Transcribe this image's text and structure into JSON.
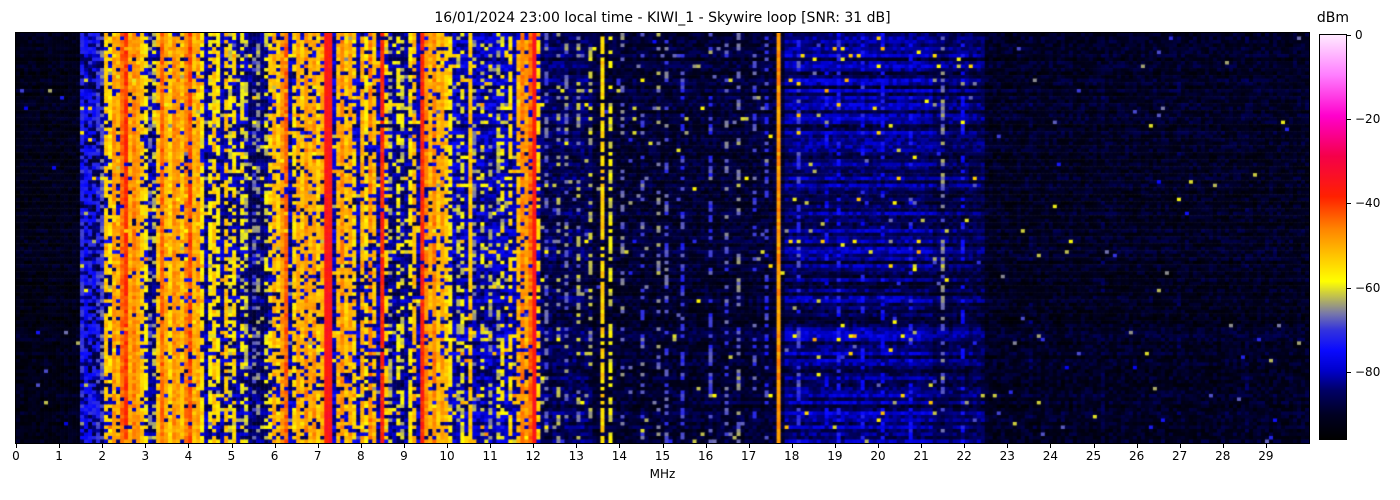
{
  "chart_data": {
    "type": "heatmap",
    "title": "16/01/2024 23:00 local time - KIWI_1 - Skywire loop [SNR: 31 dB]",
    "xlabel": "MHz",
    "ylabel": "",
    "x_range": [
      0,
      30
    ],
    "x_ticks": [
      0,
      1,
      2,
      3,
      4,
      5,
      6,
      7,
      8,
      9,
      10,
      11,
      12,
      13,
      14,
      15,
      16,
      17,
      18,
      19,
      20,
      21,
      22,
      23,
      24,
      25,
      26,
      27,
      28,
      29
    ],
    "y_ticks": [],
    "snr_db": 31,
    "station": "KIWI_1",
    "antenna": "Skywire loop",
    "timestamp": "16/01/2024 23:00 local time",
    "colorbar": {
      "label": "dBm",
      "range": [
        -96,
        0
      ],
      "ticks": [
        {
          "v": 0,
          "label": "0"
        },
        {
          "v": -20,
          "label": "−20"
        },
        {
          "v": -40,
          "label": "−40"
        },
        {
          "v": -60,
          "label": "−60"
        },
        {
          "v": -80,
          "label": "−80"
        }
      ]
    },
    "colormap_stops": [
      [
        0.0,
        "#000000"
      ],
      [
        0.06,
        "#000022"
      ],
      [
        0.12,
        "#000066"
      ],
      [
        0.17,
        "#0000cc"
      ],
      [
        0.22,
        "#0a0aff"
      ],
      [
        0.27,
        "#3333dd"
      ],
      [
        0.31,
        "#7777aa"
      ],
      [
        0.35,
        "#bbbb55"
      ],
      [
        0.39,
        "#ffff00"
      ],
      [
        0.45,
        "#ffc800"
      ],
      [
        0.52,
        "#ff8400"
      ],
      [
        0.6,
        "#ff2000"
      ],
      [
        0.7,
        "#f50049"
      ],
      [
        0.8,
        "#ff00cc"
      ],
      [
        0.9,
        "#ff7dff"
      ],
      [
        1.0,
        "#ffeaff"
      ]
    ],
    "grid": {
      "cols": 323,
      "rows": 117,
      "seed": 20240116
    },
    "noise_bands": [
      [
        0.0,
        1.45,
        -92,
        3,
        1.5,
        0.004
      ],
      [
        1.45,
        2.05,
        -85,
        4,
        2,
        0.012
      ],
      [
        2.05,
        3.02,
        -81,
        5,
        3,
        0.05
      ],
      [
        3.02,
        3.3,
        -83,
        4.5,
        2.5,
        0.03
      ],
      [
        3.3,
        4.4,
        -80,
        5,
        3,
        0.07
      ],
      [
        4.4,
        5.4,
        -82,
        4.5,
        3,
        0.04
      ],
      [
        5.4,
        5.85,
        -84.5,
        4,
        2.5,
        0.02
      ],
      [
        5.85,
        8.62,
        -81,
        5,
        3,
        0.05
      ],
      [
        8.62,
        9.3,
        -83,
        4.5,
        2.5,
        0.03
      ],
      [
        9.3,
        10.12,
        -80.5,
        5,
        3,
        0.06
      ],
      [
        10.12,
        11.56,
        -81,
        5,
        3.5,
        0.05
      ],
      [
        11.56,
        12.2,
        -81,
        5,
        3,
        0.05
      ],
      [
        12.2,
        13.4,
        -86,
        4,
        2.5,
        0.018
      ],
      [
        13.4,
        17.8,
        -89,
        3.5,
        2,
        0.01
      ],
      [
        17.8,
        21.3,
        -84,
        3.5,
        5.5,
        0.012
      ],
      [
        21.3,
        22.45,
        -86,
        3.5,
        4,
        0.008
      ],
      [
        22.45,
        30.0,
        -90.5,
        3.5,
        1.5,
        0.004
      ]
    ],
    "carriers": [
      [
        1.5,
        -72,
        0.8
      ],
      [
        1.58,
        -75,
        0.6
      ],
      [
        1.68,
        -73,
        0.6
      ],
      [
        1.8,
        -74,
        0.5
      ],
      [
        1.9,
        -71,
        0.6
      ],
      [
        1.98,
        -68,
        0.6
      ],
      [
        2.06,
        -53,
        0.8
      ],
      [
        2.16,
        -56,
        0.6
      ],
      [
        2.23,
        -48,
        0.85
      ],
      [
        2.31,
        -55,
        0.6
      ],
      [
        2.38,
        -51,
        0.7
      ],
      [
        2.45,
        -44,
        0.9
      ],
      [
        2.52,
        -52,
        0.7
      ],
      [
        2.58,
        -40,
        0.95
      ],
      [
        2.65,
        -50,
        0.9
      ],
      [
        2.72,
        -46,
        0.95
      ],
      [
        2.79,
        -52,
        0.85
      ],
      [
        2.86,
        -49,
        0.9
      ],
      [
        2.93,
        -53,
        0.8
      ],
      [
        2.99,
        -57,
        0.6
      ],
      [
        3.12,
        -66,
        0.3
      ],
      [
        3.22,
        -62,
        0.4
      ],
      [
        3.34,
        -52,
        0.85
      ],
      [
        3.41,
        -44,
        0.95
      ],
      [
        3.49,
        -50,
        0.85
      ],
      [
        3.56,
        -54,
        0.8
      ],
      [
        3.64,
        -47,
        0.9
      ],
      [
        3.71,
        -52,
        0.85
      ],
      [
        3.79,
        -49,
        0.9
      ],
      [
        3.86,
        -53,
        0.8
      ],
      [
        3.94,
        -46,
        0.9
      ],
      [
        4.02,
        -42,
        0.9
      ],
      [
        4.1,
        -51,
        0.85
      ],
      [
        4.18,
        -54,
        0.8
      ],
      [
        4.26,
        -49,
        0.85
      ],
      [
        4.33,
        -56,
        0.7
      ],
      [
        4.47,
        -58,
        0.6
      ],
      [
        4.58,
        -53,
        0.7
      ],
      [
        4.7,
        -57,
        0.65
      ],
      [
        4.83,
        -52,
        0.7
      ],
      [
        4.95,
        -60,
        0.5
      ],
      [
        5.08,
        -55,
        0.6
      ],
      [
        5.22,
        -58,
        0.55
      ],
      [
        5.33,
        -62,
        0.5
      ],
      [
        5.5,
        -67,
        0.35
      ],
      [
        5.65,
        -64,
        0.4
      ],
      [
        5.78,
        -60,
        0.45
      ],
      [
        5.9,
        -55,
        0.6
      ],
      [
        5.98,
        -50,
        0.75
      ],
      [
        6.06,
        -54,
        0.65
      ],
      [
        6.15,
        -48,
        0.8
      ],
      [
        6.24,
        -43,
        0.9
      ],
      [
        6.31,
        -52,
        0.7
      ],
      [
        6.42,
        -55,
        0.65
      ],
      [
        6.52,
        -49,
        0.8
      ],
      [
        6.62,
        -53,
        0.75
      ],
      [
        6.72,
        -47,
        0.85
      ],
      [
        6.82,
        -51,
        0.8
      ],
      [
        6.92,
        -48,
        0.8
      ],
      [
        7.02,
        -54,
        0.7
      ],
      [
        7.12,
        -50,
        0.8
      ],
      [
        7.22,
        -36,
        1.0,
        0.18
      ],
      [
        7.33,
        -38,
        1.0
      ],
      [
        7.44,
        -51,
        0.8
      ],
      [
        7.55,
        -47,
        0.85
      ],
      [
        7.66,
        -53,
        0.75
      ],
      [
        7.77,
        -49,
        0.8
      ],
      [
        7.88,
        -54,
        0.7
      ],
      [
        7.99,
        -50,
        0.75
      ],
      [
        8.1,
        -57,
        0.6
      ],
      [
        8.22,
        -46,
        0.7
      ],
      [
        8.34,
        -52,
        0.7
      ],
      [
        8.47,
        -38,
        0.95,
        0.12
      ],
      [
        8.57,
        -53,
        0.6
      ],
      [
        8.72,
        -62,
        0.45
      ],
      [
        8.86,
        -58,
        0.5
      ],
      [
        9.0,
        -61,
        0.4
      ],
      [
        9.14,
        -56,
        0.5
      ],
      [
        9.26,
        -51,
        0.6
      ],
      [
        9.4,
        -38,
        0.95,
        0.12
      ],
      [
        9.5,
        -47,
        0.85
      ],
      [
        9.6,
        -51,
        0.8
      ],
      [
        9.7,
        -46,
        0.85
      ],
      [
        9.8,
        -52,
        0.8
      ],
      [
        9.9,
        -49,
        0.8
      ],
      [
        10.0,
        -53,
        0.7
      ],
      [
        10.08,
        -57,
        0.6
      ],
      [
        10.25,
        -62,
        0.35
      ],
      [
        10.38,
        -60,
        0.4
      ],
      [
        10.53,
        -53,
        0.9
      ],
      [
        10.68,
        -64,
        0.3
      ],
      [
        10.85,
        -61,
        0.35
      ],
      [
        11.0,
        -64,
        0.3
      ],
      [
        11.15,
        -62,
        0.35
      ],
      [
        11.32,
        -58,
        0.4
      ],
      [
        11.47,
        -55,
        0.6
      ],
      [
        11.62,
        -51,
        0.7
      ],
      [
        11.74,
        -46,
        0.8
      ],
      [
        11.85,
        -49,
        0.75
      ],
      [
        11.97,
        -44,
        0.85
      ],
      [
        12.06,
        -36,
        1.0,
        0.13
      ],
      [
        12.16,
        -54,
        0.6
      ],
      [
        12.35,
        -68,
        0.4
      ],
      [
        12.55,
        -64,
        0.35
      ],
      [
        12.8,
        -66,
        0.3
      ],
      [
        13.05,
        -64,
        0.3
      ],
      [
        13.3,
        -62,
        0.35
      ],
      [
        13.62,
        -54,
        0.8
      ],
      [
        13.78,
        -60,
        0.55
      ],
      [
        14.1,
        -66,
        0.35
      ],
      [
        14.55,
        -68,
        0.3
      ],
      [
        14.95,
        -65,
        0.3
      ],
      [
        15.13,
        -68,
        0.5
      ],
      [
        15.45,
        -70,
        0.4
      ],
      [
        16.1,
        -70,
        0.35
      ],
      [
        16.45,
        -68,
        0.3
      ],
      [
        16.8,
        -66,
        0.35
      ],
      [
        17.15,
        -69,
        0.3
      ],
      [
        17.45,
        -71,
        0.3
      ],
      [
        17.68,
        -48,
        1.0
      ],
      [
        18.15,
        -70,
        0.5
      ],
      [
        18.8,
        -75,
        0.3
      ],
      [
        19.05,
        -73,
        0.4
      ],
      [
        19.6,
        -74,
        0.3
      ],
      [
        20.1,
        -75,
        0.3
      ],
      [
        20.8,
        -73,
        0.3
      ],
      [
        21.5,
        -66,
        0.5
      ],
      [
        21.95,
        -74,
        0.3
      ],
      [
        23.5,
        -86,
        0.2
      ],
      [
        25.2,
        -87,
        0.2
      ],
      [
        27.0,
        -86,
        0.15
      ],
      [
        28.6,
        -87,
        0.15
      ]
    ]
  }
}
